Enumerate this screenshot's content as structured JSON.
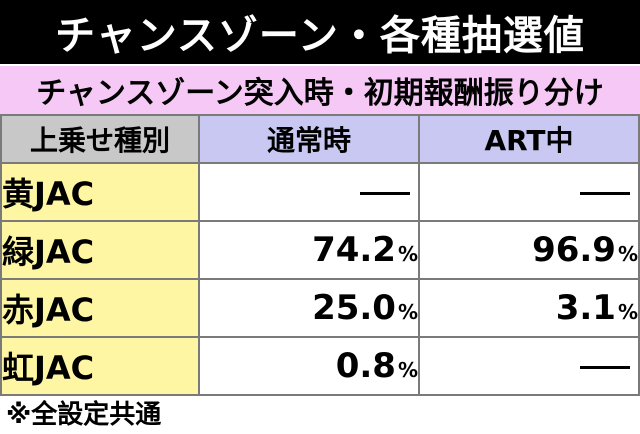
{
  "title": "チャンスゾーン・各種抽選値",
  "subtitle": "チャンスゾーン突入時・初期報酬振り分け",
  "table": {
    "headers": [
      "上乗せ種別",
      "通常時",
      "ART中"
    ],
    "rows": [
      {
        "type": "黄JAC",
        "normal": "",
        "normal_pct": "",
        "normal_is_dash": true,
        "art": "",
        "art_pct": "",
        "art_is_dash": true
      },
      {
        "type": "緑JAC",
        "normal": "74.2",
        "normal_pct": "%",
        "normal_is_dash": false,
        "art": "96.9",
        "art_pct": "%",
        "art_is_dash": false
      },
      {
        "type": "赤JAC",
        "normal": "25.0",
        "normal_pct": "%",
        "normal_is_dash": false,
        "art": "3.1",
        "art_pct": "%",
        "art_is_dash": false
      },
      {
        "type": "虹JAC",
        "normal": "0.8",
        "normal_pct": "%",
        "normal_is_dash": false,
        "art": "",
        "art_pct": "",
        "art_is_dash": true
      }
    ]
  },
  "footnote": "※全設定共通",
  "colors": {
    "title_bg": "#000000",
    "subtitle_bg": "#f5c8f5",
    "header_type_bg": "#c8c8c8",
    "header_col_bg": "#c8c8f2",
    "row_label_bg": "#fff6a3"
  }
}
